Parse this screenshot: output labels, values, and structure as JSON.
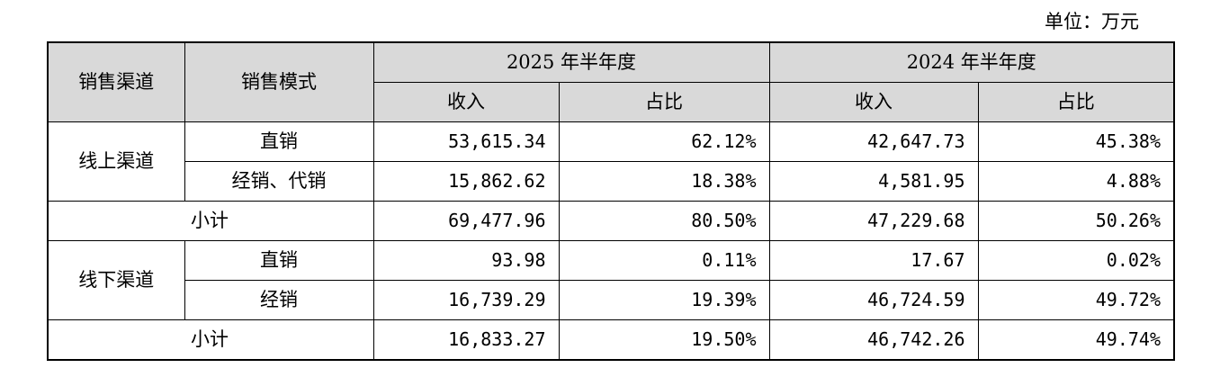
{
  "unit_label": "单位：万元",
  "header": {
    "channel": "销售渠道",
    "mode": "销售模式",
    "period_2025": "2025 年半年度",
    "period_2024": "2024 年半年度",
    "revenue": "收入",
    "share": "占比"
  },
  "groups": [
    {
      "channel": "线上渠道",
      "rows": [
        {
          "mode": "直销",
          "rev_2025": "53,615.34",
          "share_2025": "62.12%",
          "rev_2024": "42,647.73",
          "share_2024": "45.38%"
        },
        {
          "mode": "经销、代销",
          "rev_2025": "15,862.62",
          "share_2025": "18.38%",
          "rev_2024": "4,581.95",
          "share_2024": "4.88%"
        }
      ],
      "subtotal": {
        "label": "小计",
        "rev_2025": "69,477.96",
        "share_2025": "80.50%",
        "rev_2024": "47,229.68",
        "share_2024": "50.26%"
      }
    },
    {
      "channel": "线下渠道",
      "rows": [
        {
          "mode": "直销",
          "rev_2025": "93.98",
          "share_2025": "0.11%",
          "rev_2024": "17.67",
          "share_2024": "0.02%"
        },
        {
          "mode": "经销",
          "rev_2025": "16,739.29",
          "share_2025": "19.39%",
          "rev_2024": "46,724.59",
          "share_2024": "49.72%"
        }
      ],
      "subtotal": {
        "label": "小计",
        "rev_2025": "16,833.27",
        "share_2025": "19.50%",
        "rev_2024": "46,742.26",
        "share_2024": "49.74%"
      }
    }
  ]
}
